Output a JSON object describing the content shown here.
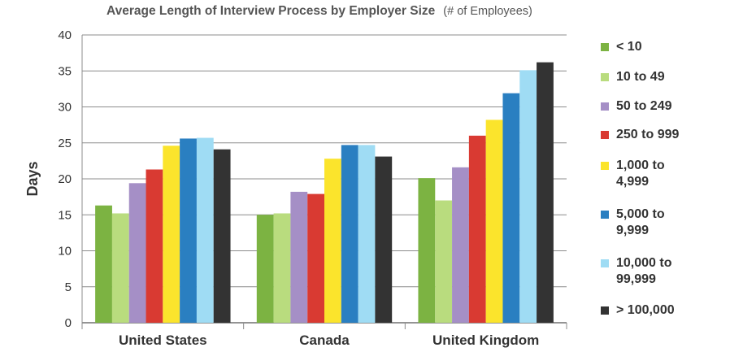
{
  "chart_data": {
    "type": "bar",
    "title": "Average Length of Interview Process by Employer Size",
    "subtitle": "(# of Employees)",
    "xlabel": "",
    "ylabel": "Days",
    "ylim": [
      0,
      40
    ],
    "yticks": [
      0,
      5,
      10,
      15,
      20,
      25,
      30,
      35,
      40
    ],
    "grid": true,
    "legend_position": "right",
    "categories": [
      "United States",
      "Canada",
      "United Kingdom"
    ],
    "series": [
      {
        "name": "< 10",
        "color": "#7cb342",
        "values": [
          16.3,
          15.0,
          20.1
        ]
      },
      {
        "name": "10 to 49",
        "color": "#b9dc7e",
        "values": [
          15.2,
          15.2,
          17.0
        ]
      },
      {
        "name": "50 to 249",
        "color": "#a58fc6",
        "values": [
          19.4,
          18.2,
          21.6
        ]
      },
      {
        "name": "250 to 999",
        "color": "#d93a32",
        "values": [
          21.3,
          17.9,
          26.0
        ]
      },
      {
        "name": "1,000 to 4,999",
        "color": "#fbe42c",
        "values": [
          24.6,
          22.8,
          28.2
        ]
      },
      {
        "name": "5,000 to 9,999",
        "color": "#2a7fc1",
        "values": [
          25.6,
          24.7,
          31.9
        ]
      },
      {
        "name": "10,000 to 99,999",
        "color": "#9fdcf4",
        "values": [
          25.7,
          24.7,
          35.1
        ]
      },
      {
        "name": "> 100,000",
        "color": "#333333",
        "values": [
          24.1,
          23.1,
          36.2
        ]
      }
    ]
  },
  "legend": [
    {
      "lines": [
        "< 10"
      ],
      "color": "#7cb342"
    },
    {
      "lines": [
        "10 to 49"
      ],
      "color": "#b9dc7e"
    },
    {
      "lines": [
        "50 to 249"
      ],
      "color": "#a58fc6"
    },
    {
      "lines": [
        "250 to 999"
      ],
      "color": "#d93a32"
    },
    {
      "lines": [
        "1,000 to",
        "4,999"
      ],
      "color": "#fbe42c"
    },
    {
      "lines": [
        "5,000 to",
        "9,999"
      ],
      "color": "#2a7fc1"
    },
    {
      "lines": [
        "10,000 to",
        "99,999"
      ],
      "color": "#9fdcf4"
    },
    {
      "lines": [
        "> 100,000"
      ],
      "color": "#333333"
    }
  ]
}
